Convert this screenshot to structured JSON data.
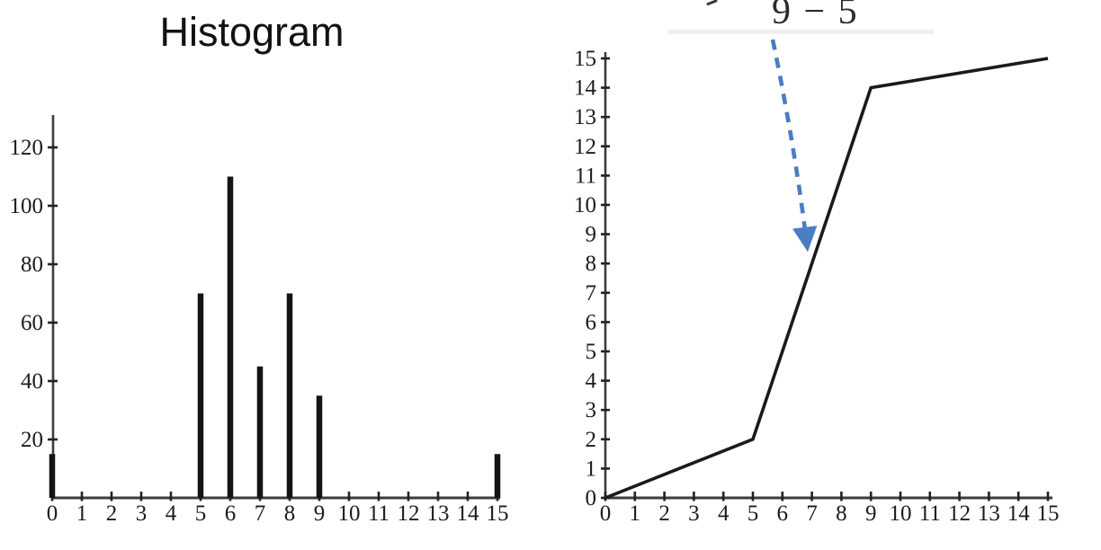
{
  "figure": {
    "background": "#ffffff",
    "annotation": {
      "formula_fragment": "9 − 5",
      "arrow_color": "#4a7dc2",
      "arrow_style": "dashed",
      "points_to": "steep middle segment of transformation line"
    }
  },
  "chart_data": [
    {
      "type": "bar",
      "title": "Histogram",
      "xlabel": "",
      "ylabel": "",
      "categories": [
        0,
        5,
        6,
        7,
        8,
        9,
        15
      ],
      "values": [
        15,
        70,
        110,
        45,
        70,
        35,
        15
      ],
      "x_tick_labels": [
        "0",
        "1",
        "2",
        "3",
        "4",
        "5",
        "6",
        "7",
        "8",
        "9",
        "10",
        "11",
        "12",
        "13",
        "14",
        "15"
      ],
      "y_tick_labels": [
        "20",
        "40",
        "60",
        "80",
        "100",
        "120"
      ],
      "y_tick_values": [
        20,
        40,
        60,
        80,
        100,
        120
      ],
      "xlim": [
        0,
        15.2
      ],
      "ylim": [
        0,
        131
      ],
      "grid": false,
      "legend": "none",
      "bar_color": "#141414",
      "axis_color": "#3c3c3c"
    },
    {
      "type": "line",
      "title": "",
      "xlabel": "",
      "ylabel": "",
      "x": [
        0,
        5,
        9,
        15
      ],
      "y": [
        0,
        2,
        14,
        15
      ],
      "x_tick_labels": [
        "0",
        "1",
        "2",
        "3",
        "4",
        "5",
        "6",
        "7",
        "8",
        "9",
        "10",
        "11",
        "12",
        "13",
        "14",
        "15"
      ],
      "y_tick_labels": [
        "0",
        "1",
        "2",
        "3",
        "4",
        "5",
        "6",
        "7",
        "8",
        "9",
        "10",
        "11",
        "12",
        "13",
        "14",
        "15"
      ],
      "xlim": [
        0,
        15.2
      ],
      "ylim": [
        0,
        15.2
      ],
      "grid": false,
      "legend": "none",
      "line_color": "#1a1a1a",
      "axis_color": "#3c3c3c",
      "annotation": {
        "label": "9 − 5",
        "arrow": "blue dashed arrow from formula down to the steep segment near (7, 8)"
      }
    }
  ]
}
